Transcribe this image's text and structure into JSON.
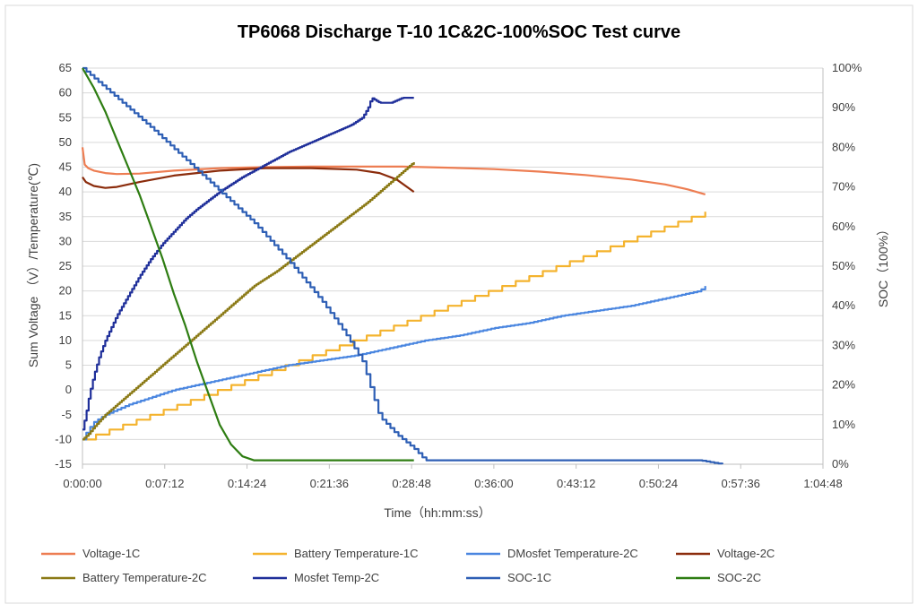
{
  "chart_data": {
    "type": "line",
    "title": "TP6068  Discharge T-10 1C&2C-100%SOC  Test   curve",
    "xlabel": "Time（hh:mm:ss）",
    "ylabel": "Sum Voltage （V）/Temperature(℃)",
    "y2label": "SOC（100%）",
    "xlim_minutes": [
      0,
      64.8
    ],
    "ylim": [
      -15,
      65
    ],
    "y2lim": [
      0,
      100
    ],
    "x_ticks_minutes": [
      0,
      7.2,
      14.4,
      21.6,
      28.8,
      36,
      43.2,
      50.4,
      57.6,
      64.8
    ],
    "x_tick_labels": [
      "0:00:00",
      "0:07:12",
      "0:14:24",
      "0:21:36",
      "0:28:48",
      "0:36:00",
      "0:43:12",
      "0:50:24",
      "0:57:36",
      "1:04:48"
    ],
    "y_ticks": [
      -15,
      -10,
      -5,
      0,
      5,
      10,
      15,
      20,
      25,
      30,
      35,
      40,
      45,
      50,
      55,
      60,
      65
    ],
    "y2_ticks": [
      0,
      10,
      20,
      30,
      40,
      50,
      60,
      70,
      80,
      90,
      100
    ],
    "y2_tick_labels": [
      "0%",
      "10%",
      "20%",
      "30%",
      "40%",
      "50%",
      "60%",
      "70%",
      "80%",
      "90%",
      "100%"
    ],
    "grid": "horizontal",
    "legend_position": "bottom",
    "series": [
      {
        "name": "Voltage-1C",
        "color": "#ED7D52",
        "axis": "left",
        "x": [
          0,
          0.2,
          0.5,
          1,
          2,
          3,
          5,
          8,
          12,
          16,
          20,
          24,
          28,
          32,
          36,
          40,
          44,
          48,
          51,
          53,
          54.5
        ],
        "y": [
          49,
          45.5,
          44.8,
          44.3,
          43.8,
          43.6,
          43.7,
          44.3,
          44.8,
          45,
          45.1,
          45.1,
          45.1,
          44.9,
          44.6,
          44.1,
          43.4,
          42.5,
          41.5,
          40.5,
          39.5
        ]
      },
      {
        "name": "Battery Temperature-1C",
        "color": "#F4B32E",
        "axis": "left",
        "step": true,
        "x": [
          0,
          54.5
        ],
        "y": [
          -10,
          36
        ]
      },
      {
        "name": "DMosfet Temperature-2C",
        "color": "#4A86E0",
        "axis": "left",
        "step": true,
        "x": [
          0,
          0.5,
          1,
          2,
          3,
          4,
          6,
          8,
          10,
          12,
          15,
          18,
          21,
          24,
          27,
          30,
          33,
          36,
          39,
          42,
          45,
          48,
          51,
          54,
          54.5
        ],
        "y": [
          -10,
          -8,
          -6.5,
          -5,
          -4,
          -3,
          -1.5,
          0,
          1,
          2,
          3.5,
          5,
          6,
          7,
          8.5,
          10,
          11,
          12.5,
          13.5,
          15,
          16,
          17,
          18.5,
          20,
          21
        ]
      },
      {
        "name": "Voltage-2C",
        "color": "#8B2C0C",
        "axis": "left",
        "x": [
          0,
          0.3,
          1,
          2,
          3,
          5,
          8,
          12,
          16,
          20,
          24,
          26,
          27.5,
          29
        ],
        "y": [
          43,
          42,
          41.2,
          40.8,
          41,
          42,
          43.3,
          44.3,
          44.8,
          44.8,
          44.5,
          43.8,
          42.5,
          40
        ]
      },
      {
        "name": "Battery Temperature-2C",
        "color": "#8B7A16",
        "axis": "left",
        "step": true,
        "x": [
          0,
          0.5,
          1,
          2,
          3,
          5,
          7,
          9,
          11,
          13,
          15,
          17,
          19,
          21,
          23,
          25,
          27,
          29
        ],
        "y": [
          -10,
          -9,
          -7.5,
          -5,
          -3,
          1,
          5,
          9,
          13,
          17,
          21,
          24,
          27.5,
          31,
          34.5,
          38,
          42,
          46
        ]
      },
      {
        "name": "Mosfet Temp-2C",
        "color": "#1F2F9A",
        "axis": "left",
        "step": true,
        "x": [
          0,
          0.3,
          0.6,
          1,
          1.5,
          2,
          3,
          4,
          5,
          6,
          7,
          8,
          9,
          10,
          12,
          14,
          16,
          18,
          20,
          22,
          23.5,
          24.5,
          25,
          25.3,
          26,
          27,
          28,
          29
        ],
        "y": [
          -8,
          -5,
          -1,
          3,
          7,
          10,
          15,
          19,
          23,
          26.5,
          29.5,
          32,
          34.5,
          36.5,
          40,
          43,
          45.5,
          48,
          50,
          52,
          53.5,
          55,
          57,
          59,
          58,
          58,
          59,
          59
        ]
      },
      {
        "name": "SOC-1C",
        "color": "#2E5FB5",
        "axis": "right",
        "step": true,
        "x": [
          0,
          3,
          6,
          9,
          12,
          15,
          18,
          21,
          23,
          24.5,
          26,
          27.5,
          29,
          30,
          54,
          56
        ],
        "y": [
          100,
          92.5,
          85,
          77,
          69,
          61,
          51.5,
          41,
          33,
          26,
          12,
          7.5,
          4,
          1,
          1,
          0
        ]
      },
      {
        "name": "SOC-2C",
        "color": "#2E7D12",
        "axis": "right",
        "x": [
          0,
          1,
          2,
          3,
          4,
          5,
          6,
          7,
          8,
          9,
          10,
          11,
          12,
          13,
          14,
          15,
          29
        ],
        "y": [
          100,
          95,
          89,
          82,
          75,
          68,
          60,
          52,
          43,
          35,
          26,
          18,
          10,
          5,
          2,
          1,
          1
        ]
      }
    ],
    "legend": [
      [
        "Voltage-1C",
        "Battery Temperature-1C",
        "DMosfet Temperature-2C",
        "Voltage-2C"
      ],
      [
        "Battery Temperature-2C",
        "Mosfet Temp-2C",
        "SOC-1C",
        "SOC-2C"
      ]
    ]
  }
}
